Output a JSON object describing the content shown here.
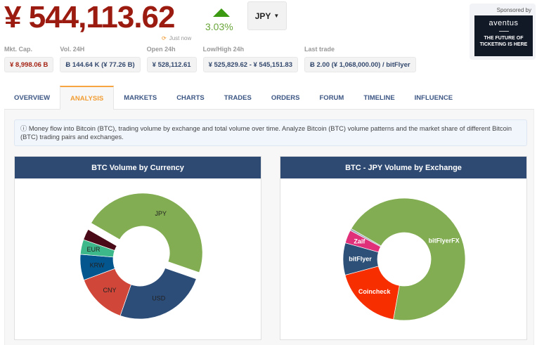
{
  "header": {
    "price": "¥ 544,113.62",
    "change": "3.03%",
    "updated": "Just now",
    "currency": "JPY"
  },
  "stats": [
    {
      "label": "Mkt. Cap.",
      "value": "¥ 8,998.06 B"
    },
    {
      "label": "Vol. 24H",
      "value": "Ƀ 144.64 K (¥ 77.26 B)"
    },
    {
      "label": "Open 24h",
      "value": "¥ 528,112.61"
    },
    {
      "label": "Low/High 24h",
      "value": "¥ 525,829.62 - ¥ 545,151.83"
    },
    {
      "label": "Last trade",
      "value": "Ƀ 2.00 (¥ 1,068,000.00) / bitFlyer"
    }
  ],
  "sponsor": {
    "label": "Sponsored by",
    "brand": "aventus",
    "tagline": "THE FUTURE OF TICKETING IS HERE"
  },
  "tabs": [
    {
      "label": "OVERVIEW"
    },
    {
      "label": "ANALYSIS",
      "active": true
    },
    {
      "label": "MARKETS"
    },
    {
      "label": "CHARTS"
    },
    {
      "label": "TRADES"
    },
    {
      "label": "ORDERS"
    },
    {
      "label": "FORUM"
    },
    {
      "label": "TIMELINE"
    },
    {
      "label": "INFLUENCE"
    }
  ],
  "info": "Money flow into Bitcoin (BTC), trading volume by exchange and total volume over time. Analyze Bitcoin (BTC) volume patterns and the market share of different Bitcoin (BTC) trading pairs and exchanges.",
  "chart_data": [
    {
      "type": "pie",
      "title": "BTC Volume by Currency",
      "donut": true,
      "start_deg": 300,
      "slices": [
        {
          "label": "JPY",
          "value": 47,
          "color": "#82ad52",
          "exploded": true,
          "text_color": "#222"
        },
        {
          "label": "USD",
          "value": 25,
          "color": "#2c4d78",
          "text_color": "#222"
        },
        {
          "label": "CNY",
          "value": 14,
          "color": "#d0473a",
          "text_color": "#222"
        },
        {
          "label": "KRW",
          "value": 7,
          "color": "#04568f",
          "text_color": "#222"
        },
        {
          "label": "EUR",
          "value": 4,
          "color": "#3db88a",
          "text_color": "#222"
        },
        {
          "label": "",
          "value": 3,
          "color": "#4a0a17"
        }
      ]
    },
    {
      "type": "pie",
      "title": "BTC - JPY Volume by Exchange",
      "donut": true,
      "start_deg": 300,
      "slices": [
        {
          "label": "bitFlyerFX",
          "value": 69.5,
          "color": "#82ad52",
          "text_color": "#fff"
        },
        {
          "label": "Coincheck",
          "value": 18,
          "color": "#f72e00",
          "text_color": "#fff"
        },
        {
          "label": "bitFlyer",
          "value": 8.5,
          "color": "#2c5078",
          "text_color": "#fff"
        },
        {
          "label": "Zaif",
          "value": 3.5,
          "color": "#e0307a",
          "text_color": "#fff"
        },
        {
          "label": "",
          "value": 0.5,
          "color": "#9aa8b8"
        }
      ]
    }
  ]
}
